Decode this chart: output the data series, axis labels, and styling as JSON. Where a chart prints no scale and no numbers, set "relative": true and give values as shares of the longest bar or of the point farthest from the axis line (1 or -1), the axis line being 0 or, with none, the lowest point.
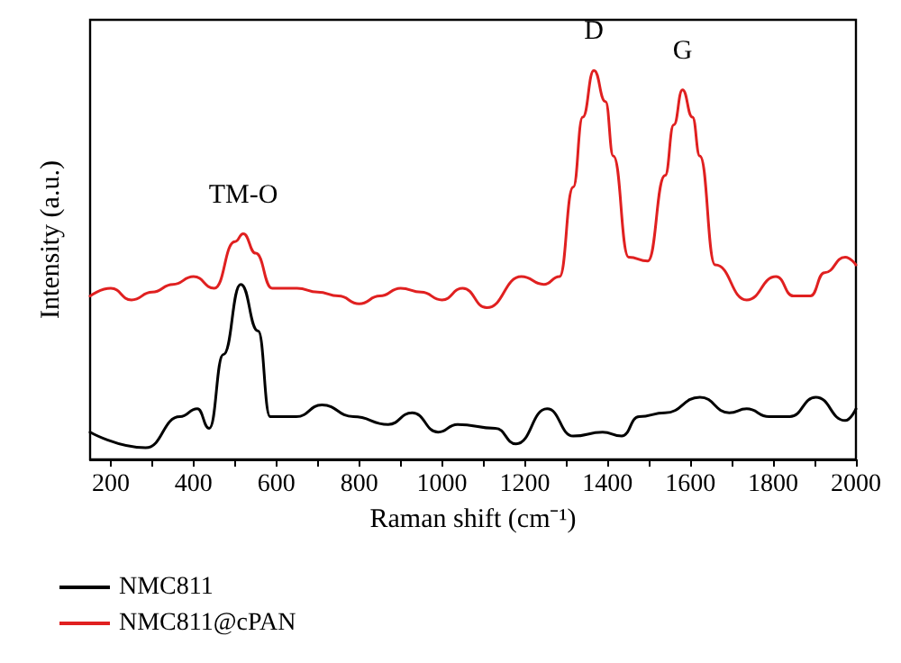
{
  "chart_data": {
    "type": "line",
    "relative": true,
    "xlabel": "Raman shift (cm⁻¹)",
    "ylabel": "Intensity (a.u.)",
    "xlim": [
      150,
      2000
    ],
    "xticks": [
      200,
      {
        "value": 300,
        "label": null
      },
      400,
      {
        "value": 500,
        "label": null
      },
      600,
      {
        "value": 700,
        "label": null
      },
      800,
      {
        "value": 900,
        "label": null
      },
      1000,
      {
        "value": 1100,
        "label": null
      },
      1200,
      {
        "value": 1300,
        "label": null
      },
      1400,
      {
        "value": 1500,
        "label": null
      },
      1600,
      {
        "value": 1700,
        "label": null
      },
      1800,
      {
        "value": 1900,
        "label": null
      },
      2000
    ],
    "grid": false,
    "legend": "bottom",
    "marker": "none",
    "line_style": "solid",
    "series": [
      {
        "name": "NMC811",
        "color": "#000000",
        "x": [
          150,
          284,
          367,
          409,
          438,
          472,
          514,
          556,
          585,
          648,
          710,
          786,
          870,
          928,
          991,
          1037,
          1129,
          1179,
          1254,
          1317,
          1388,
          1434,
          1476,
          1539,
          1623,
          1694,
          1736,
          1790,
          1840,
          1903,
          1974,
          2000
        ],
        "values": [
          0.07,
          0.03,
          0.11,
          0.13,
          0.08,
          0.27,
          0.45,
          0.33,
          0.11,
          0.11,
          0.14,
          0.11,
          0.09,
          0.12,
          0.07,
          0.09,
          0.08,
          0.04,
          0.13,
          0.06,
          0.07,
          0.06,
          0.11,
          0.12,
          0.16,
          0.12,
          0.13,
          0.11,
          0.11,
          0.16,
          0.1,
          0.13
        ]
      },
      {
        "name": "NMC811@cPAN",
        "color": "#e02020",
        "x": [
          150,
          200,
          250,
          300,
          350,
          400,
          450,
          500,
          520,
          550,
          590,
          650,
          700,
          750,
          800,
          850,
          900,
          950,
          1000,
          1050,
          1108,
          1192,
          1246,
          1284,
          1317,
          1340,
          1367,
          1395,
          1414,
          1451,
          1497,
          1539,
          1560,
          1581,
          1605,
          1623,
          1660,
          1736,
          1807,
          1849,
          1890,
          1924,
          1974,
          2000
        ],
        "values": [
          0.42,
          0.44,
          0.41,
          0.43,
          0.45,
          0.47,
          0.44,
          0.56,
          0.58,
          0.53,
          0.44,
          0.44,
          0.43,
          0.42,
          0.4,
          0.42,
          0.44,
          0.43,
          0.41,
          0.44,
          0.39,
          0.47,
          0.45,
          0.47,
          0.7,
          0.88,
          1,
          0.92,
          0.78,
          0.52,
          0.51,
          0.73,
          0.86,
          0.95,
          0.88,
          0.78,
          0.5,
          0.41,
          0.47,
          0.42,
          0.42,
          0.48,
          0.52,
          0.5
        ]
      }
    ],
    "annotations": [
      {
        "text": "TM-O",
        "x": 520,
        "y": 0.58
      },
      {
        "text": "D",
        "x": 1367,
        "y": 1
      },
      {
        "text": "G",
        "x": 1581,
        "y": 0.95
      }
    ]
  }
}
